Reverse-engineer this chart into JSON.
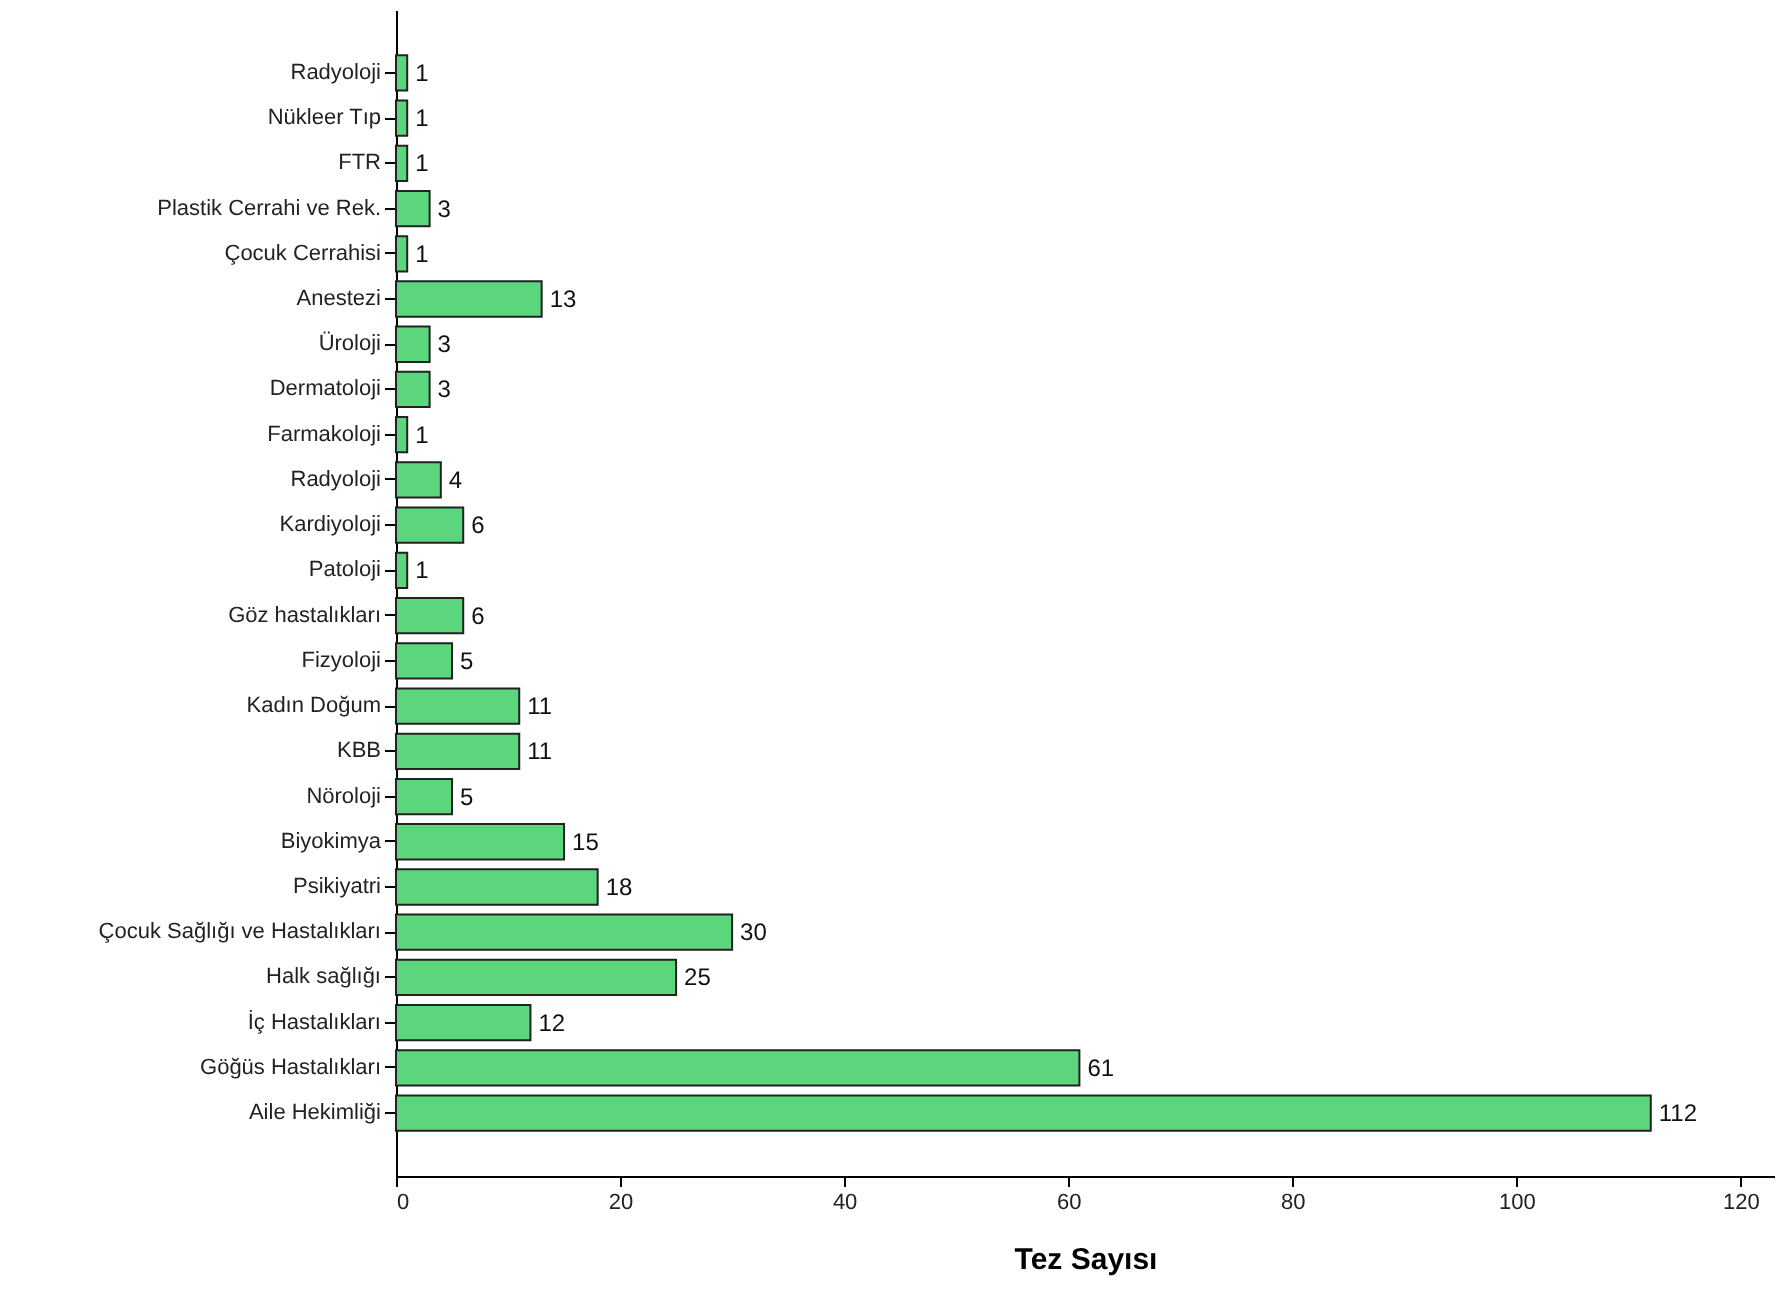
{
  "chart_data": {
    "type": "bar",
    "orientation": "horizontal",
    "xlabel": "Tez Sayısı",
    "categories": [
      "Radyoloji",
      "Nükleer Tıp",
      "FTR",
      "Plastik Cerrahi ve Rek.",
      "Çocuk Cerrahisi",
      "Anestezi",
      "Üroloji",
      "Dermatoloji",
      "Farmakoloji",
      "Radyoloji",
      "Kardiyoloji",
      "Patoloji",
      "Göz hastalıkları",
      "Fizyoloji",
      "Kadın Doğum",
      "KBB",
      "Nöroloji",
      "Biyokimya",
      "Psikiyatri",
      "Çocuk Sağlığı ve Hastalıkları",
      "Halk sağlığı",
      "İç Hastalıkları",
      "Göğüs Hastalıkları",
      "Aile Hekimliği"
    ],
    "values": [
      1,
      1,
      1,
      3,
      1,
      13,
      3,
      3,
      1,
      4,
      6,
      1,
      6,
      5,
      11,
      11,
      5,
      15,
      18,
      30,
      25,
      12,
      61,
      112
    ],
    "color": "#5cd67c",
    "xlim": [
      0,
      123
    ],
    "xticks": [
      0,
      20,
      40,
      60,
      80,
      100,
      120
    ],
    "data_labels": true,
    "grid": false
  }
}
